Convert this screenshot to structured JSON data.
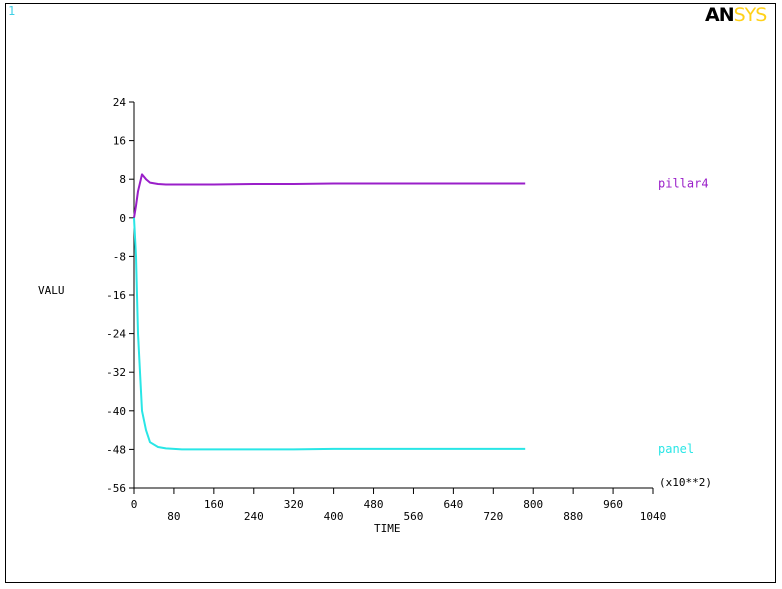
{
  "window_number": "1",
  "logo": {
    "part1": "AN",
    "part2": "SYS"
  },
  "colors": {
    "pillar4": "#9a1fc9",
    "panel": "#29e6e6",
    "axis": "#000000"
  },
  "chart_data": {
    "type": "line",
    "title": "",
    "xlabel": "TIME",
    "ylabel": "VALU",
    "x_multiplier_label": "(x10**2)",
    "xlim": [
      0,
      1040
    ],
    "ylim": [
      -56,
      24
    ],
    "x_ticks": [
      0,
      80,
      160,
      240,
      320,
      400,
      480,
      560,
      640,
      720,
      800,
      880,
      960,
      1040
    ],
    "x_tick_labels": [
      "0",
      "80",
      "160",
      "240",
      "320",
      "400",
      "480",
      "560",
      "640",
      "720",
      "800",
      "880",
      "960",
      "1040"
    ],
    "y_ticks": [
      24,
      16,
      8,
      0,
      -8,
      -16,
      -24,
      -32,
      -40,
      -48,
      -56
    ],
    "y_tick_labels": [
      "24",
      "16",
      "8",
      "0",
      "-8",
      "-16",
      "-24",
      "-32",
      "-40",
      "-48",
      "-56"
    ],
    "grid": false,
    "legend": "right-inline",
    "series": [
      {
        "name": "pillar4",
        "x": [
          0,
          4,
          8,
          16,
          24,
          32,
          48,
          64,
          96,
          128,
          160,
          240,
          320,
          400,
          480,
          560,
          640,
          720,
          784
        ],
        "y": [
          0,
          2.5,
          5.5,
          9.0,
          8.0,
          7.3,
          7.0,
          6.9,
          6.9,
          6.9,
          6.9,
          7.0,
          7.0,
          7.1,
          7.1,
          7.1,
          7.1,
          7.1,
          7.1
        ]
      },
      {
        "name": "panel",
        "x": [
          0,
          2,
          4,
          6,
          8,
          12,
          16,
          24,
          32,
          48,
          64,
          80,
          96,
          128,
          160,
          240,
          320,
          400,
          480,
          560,
          640,
          720,
          784
        ],
        "y": [
          0,
          -4,
          -8,
          -16,
          -24,
          -32,
          -40,
          -44,
          -46.5,
          -47.5,
          -47.8,
          -47.9,
          -48.0,
          -48.0,
          -48.0,
          -48.0,
          -48.0,
          -47.9,
          -47.9,
          -47.9,
          -47.9,
          -47.9,
          -47.9
        ]
      }
    ]
  }
}
